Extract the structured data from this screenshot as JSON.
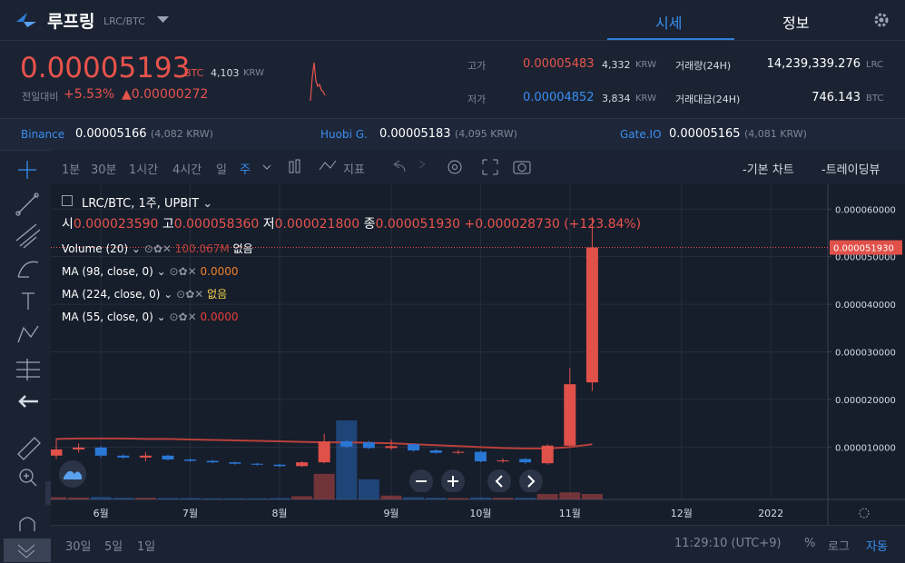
{
  "header": {
    "name": "루프링",
    "pair": "LRC/BTC",
    "tabs": [
      "시세",
      "정보"
    ]
  },
  "ticker": {
    "price": "0.00005193",
    "unit": "BTC",
    "krw": "4,103",
    "krw_unit": "KRW",
    "change_label": "전일대비",
    "change_pct": "+5.53%",
    "change_abs": "▲0.00000272",
    "high": {
      "label": "고가",
      "value": "0.00005483",
      "krw": "4,332",
      "unit": "KRW"
    },
    "low": {
      "label": "저가",
      "value": "0.00004852",
      "krw": "3,834",
      "unit": "KRW"
    },
    "volume": {
      "label": "거래량(24H)",
      "value": "14,239,339.276",
      "unit": "LRC"
    },
    "turnover": {
      "label": "거래대금(24H)",
      "value": "746.143",
      "unit": "BTC"
    }
  },
  "exchanges": [
    {
      "name": "Binance",
      "price": "0.00005166",
      "krw": "(4,082 KRW)"
    },
    {
      "name": "Huobi G.",
      "price": "0.00005183",
      "krw": "(4,095 KRW)"
    },
    {
      "name": "Gate.IO",
      "price": "0.00005165",
      "krw": "(4,081 KRW)"
    }
  ],
  "toolbar": {
    "intervals": [
      "1분",
      "30분",
      "1시간",
      "4시간",
      "일",
      "주"
    ],
    "indicator": "지표",
    "modes": [
      "-기본 차트",
      "-트레이딩뷰"
    ]
  },
  "chart_data": {
    "type": "candlestick",
    "title": "LRC/BTC, 1주, UPBIT",
    "ohlc": [
      {
        "label": "시",
        "value": "0.000023590"
      },
      {
        "label": "고",
        "value": "0.000058360"
      },
      {
        "label": "저",
        "value": "0.000021800"
      },
      {
        "label": "종",
        "value": "0.000051930"
      }
    ],
    "change": "+0.000028730 (+123.84%)",
    "indicators": [
      {
        "name": "Volume (20)",
        "value": "100.067M",
        "extra": "없음"
      },
      {
        "name": "MA (98, close, 0)",
        "value": "0.0000"
      },
      {
        "name": "MA (224, close, 0)",
        "value": "없음"
      },
      {
        "name": "MA (55, close, 0)",
        "value": "0.0000"
      }
    ],
    "open": [
      8.2e-06,
      9.5e-06,
      9.9e-06,
      8.2e-06,
      7.8e-06,
      8.2e-06,
      7.4e-06,
      7.1e-06,
      6.8e-06,
      6.5e-06,
      6.3e-06,
      6e-06,
      6.8e-06,
      1.12e-05,
      1.1e-05,
      9.8e-06,
      1.06e-05,
      9.3e-06,
      8.8e-06,
      9e-06,
      7e-06,
      7.5e-06,
      6.6e-06,
      1.03e-05,
      2.359e-05
    ],
    "high": [
      1.18e-05,
      1.08e-05,
      1.03e-05,
      8.5e-06,
      9e-06,
      8.4e-06,
      7.6e-06,
      7.3e-06,
      7e-06,
      6.7e-06,
      6.5e-06,
      7e-06,
      1.28e-05,
      1.16e-05,
      1.13e-05,
      1.16e-05,
      1.08e-05,
      9.6e-06,
      9.4e-06,
      9.2e-06,
      7.6e-06,
      7.7e-06,
      1.06e-05,
      2.66e-05,
      5.836e-05
    ],
    "low": [
      7.5e-06,
      8.8e-06,
      7.8e-06,
      7.5e-06,
      7e-06,
      7.2e-06,
      6.9e-06,
      6.6e-06,
      6.3e-06,
      6.1e-06,
      5.8e-06,
      5.8e-06,
      6.6e-06,
      9.8e-06,
      9.6e-06,
      9.4e-06,
      9e-06,
      8.6e-06,
      8.5e-06,
      6.8e-06,
      6.7e-06,
      6.5e-06,
      6.3e-06,
      1e-05,
      2.18e-05
    ],
    "close": [
      9.5e-06,
      9.9e-06,
      8.2e-06,
      7.8e-06,
      8.2e-06,
      7.4e-06,
      7.1e-06,
      6.8e-06,
      6.5e-06,
      6.3e-06,
      6e-06,
      6.8e-06,
      1.12e-05,
      1.01e-05,
      9.8e-06,
      1.02e-05,
      9.3e-06,
      8.8e-06,
      9e-06,
      7e-06,
      7.2e-06,
      6.8e-06,
      1.03e-05,
      2.32e-05,
      5.193e-05
    ],
    "volume": [
      40,
      35,
      45,
      30,
      30,
      25,
      25,
      20,
      20,
      20,
      25,
      60,
      470,
      1450,
      370,
      70,
      40,
      30,
      25,
      35,
      30,
      30,
      100,
      130,
      100.067
    ],
    "ma": [
      1.17e-05,
      1.18e-05,
      1.18e-05,
      1.18e-05,
      1.17e-05,
      1.17e-05,
      1.16e-05,
      1.15e-05,
      1.14e-05,
      1.13e-05,
      1.12e-05,
      1.11e-05,
      1.1e-05,
      1.1e-05,
      1.09e-05,
      1.08e-05,
      1.06e-05,
      1.04e-05,
      1.02e-05,
      1e-05,
      9.8e-06,
      9.7e-06,
      9.7e-06,
      1e-05,
      1.06e-05
    ],
    "up_color": "#e0514a",
    "down_color": "#2a78d6",
    "ma_color": "#b8403a",
    "ylim": [
      -1e-06,
      6.52e-05
    ],
    "yticks": [
      {
        "value": 1e-05,
        "label": "0.000010000"
      },
      {
        "value": 2e-05,
        "label": "0.000020000"
      },
      {
        "value": 3e-05,
        "label": "0.000030000"
      },
      {
        "value": 4e-05,
        "label": "0.000040000"
      },
      {
        "value": 5e-05,
        "label": "0.000050000"
      },
      {
        "value": 6e-05,
        "label": "0.000060000"
      }
    ],
    "xticks": [
      {
        "value": 2,
        "label": "6월"
      },
      {
        "value": 6,
        "label": "7월"
      },
      {
        "value": 10,
        "label": "8월"
      },
      {
        "value": 15,
        "label": "9월"
      },
      {
        "value": 19,
        "label": "10월"
      },
      {
        "value": 23,
        "label": "11월"
      },
      {
        "value": 28,
        "label": "12월"
      },
      {
        "value": 32,
        "label": "2022"
      }
    ],
    "price_line": {
      "value": 5.193e-05,
      "label": "0.000051930"
    },
    "grid": true
  },
  "footer": {
    "ranges": [
      "30일",
      "5일",
      "1일"
    ],
    "time": "11:29:10 (UTC+9)",
    "options": [
      "%",
      "로그",
      "자동"
    ]
  }
}
